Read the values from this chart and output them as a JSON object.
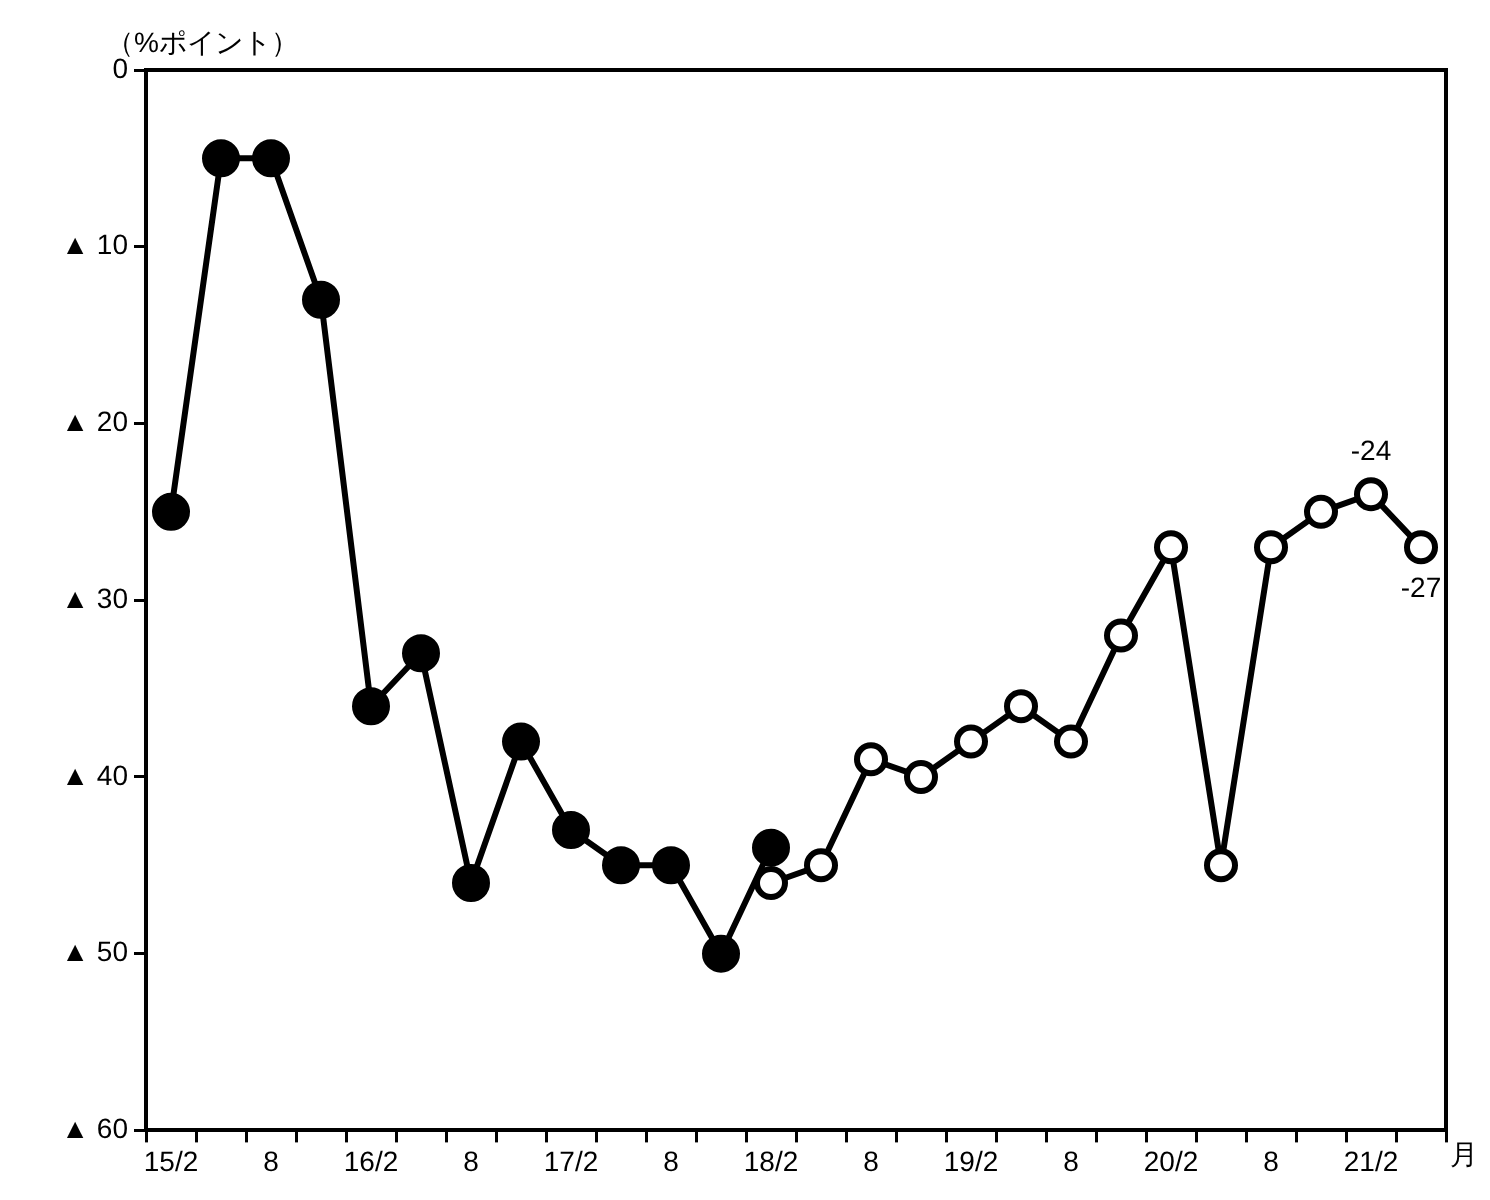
{
  "chart_data": {
    "type": "line",
    "ylabel": "（%ポイント）",
    "xlabel": "月",
    "categories": [
      "15/2",
      null,
      "8",
      null,
      "16/2",
      null,
      "8",
      null,
      "17/2",
      null,
      "8",
      null,
      "18/2",
      null,
      "8",
      null,
      "19/2",
      null,
      "8",
      null,
      "20/2",
      null,
      "8",
      null,
      "21/2",
      null
    ],
    "series": [
      {
        "color": "#000000",
        "values": [
          -25,
          -5,
          -5,
          -13,
          -36,
          -33,
          -46,
          -38,
          -43,
          -45,
          -45,
          -50,
          -44,
          null,
          null,
          null,
          null,
          null,
          null,
          null,
          null,
          null,
          null,
          null,
          null,
          null
        ]
      },
      {
        "color": "#000000",
        "values": [
          null,
          null,
          null,
          null,
          null,
          null,
          null,
          null,
          null,
          null,
          null,
          null,
          -46,
          -45,
          -39,
          -40,
          -38,
          -36,
          -38,
          -32,
          -27,
          -45,
          -27,
          -25,
          -24,
          -27
        ],
        "value_labels": [
          null,
          null,
          null,
          null,
          null,
          null,
          null,
          null,
          null,
          null,
          null,
          null,
          null,
          null,
          null,
          null,
          null,
          null,
          null,
          null,
          null,
          null,
          null,
          null,
          "-24",
          "-27"
        ]
      }
    ],
    "ylim": [
      -60,
      0
    ],
    "yticks": [
      0,
      {
        "value": -10,
        "label": "▲ 10"
      },
      {
        "value": -20,
        "label": "▲ 20"
      },
      {
        "value": -30,
        "label": "▲ 30"
      },
      {
        "value": -40,
        "label": "▲ 40"
      },
      {
        "value": -50,
        "label": "▲ 50"
      },
      {
        "value": -60,
        "label": "▲ 60"
      }
    ],
    "marker": "circle",
    "line_style": "solid",
    "legend": false,
    "grid": false
  }
}
